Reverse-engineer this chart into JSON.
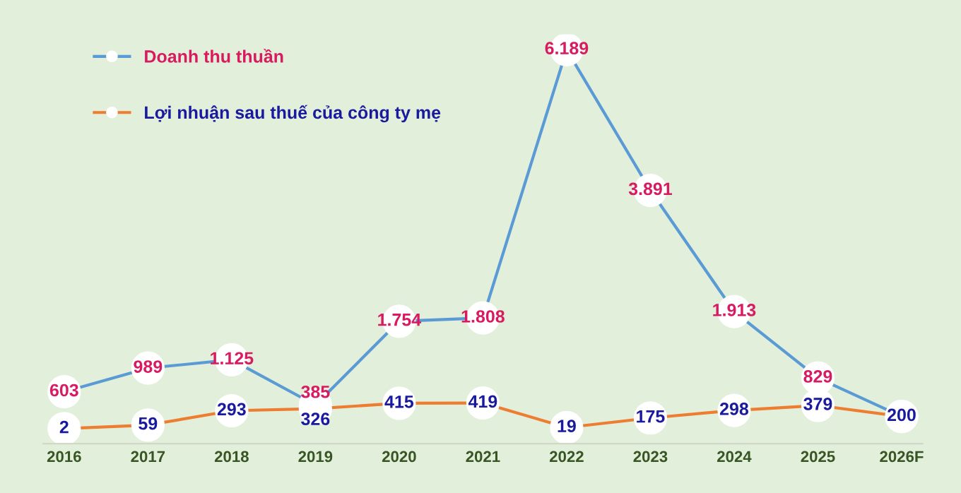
{
  "chart_data": {
    "type": "line",
    "categories": [
      "2016",
      "2017",
      "2018",
      "2019",
      "2020",
      "2021",
      "2022",
      "2023",
      "2024",
      "2025",
      "2026F"
    ],
    "series": [
      {
        "name": "Doanh thu thuần",
        "color": "#5b9bd5",
        "values": [
          603,
          989,
          1125,
          385,
          1754,
          1808,
          6189,
          3891,
          1913,
          829,
          200
        ],
        "value_labels": [
          "603",
          "989",
          "1.125",
          "385",
          "1.754",
          "1.808",
          "6.189",
          "3.891",
          "1.913",
          "829",
          null
        ]
      },
      {
        "name": "Lợi nhuận sau thuế của công ty mẹ",
        "color": "#ed7d31",
        "values": [
          2,
          59,
          293,
          326,
          415,
          419,
          19,
          175,
          298,
          379,
          200
        ],
        "value_labels": [
          "2",
          "59",
          "293",
          "326",
          "415",
          "419",
          "19",
          "175",
          "298",
          "379",
          "200"
        ]
      }
    ],
    "marker": "circle",
    "line_style": "solid",
    "legend": "top left",
    "grid": false
  }
}
